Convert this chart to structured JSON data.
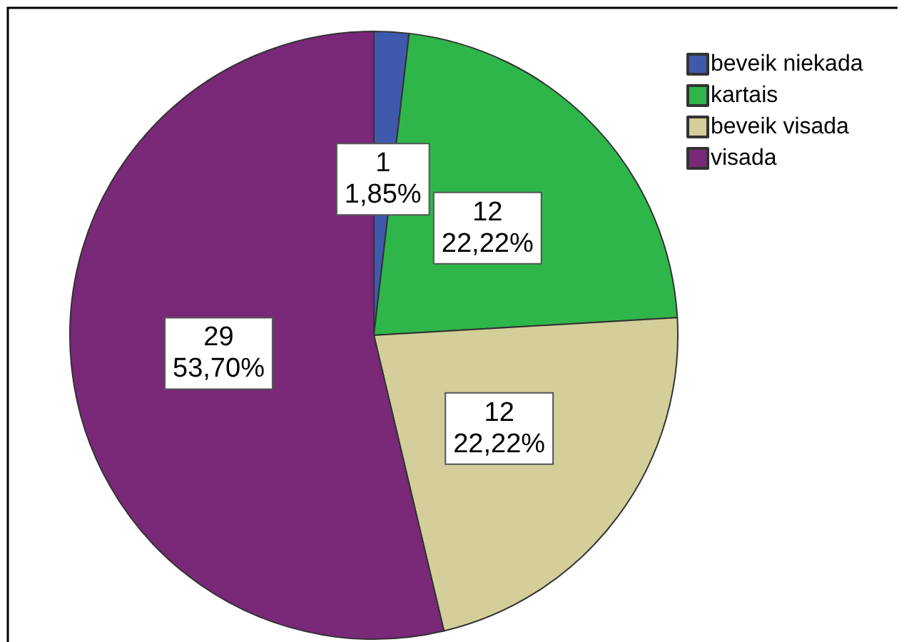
{
  "chart_data": {
    "type": "pie",
    "categories": [
      "beveik niekada",
      "kartais",
      "beveik visada",
      "visada"
    ],
    "values": [
      1,
      12,
      12,
      29
    ],
    "colors": [
      "#3f5aad",
      "#2fb64a",
      "#d4cf9a",
      "#7a2878"
    ],
    "value_labels": [
      "1\n1,85%",
      "12\n22,22%",
      "12\n22,22%",
      "29\n53,70%"
    ],
    "legend": "top right"
  }
}
